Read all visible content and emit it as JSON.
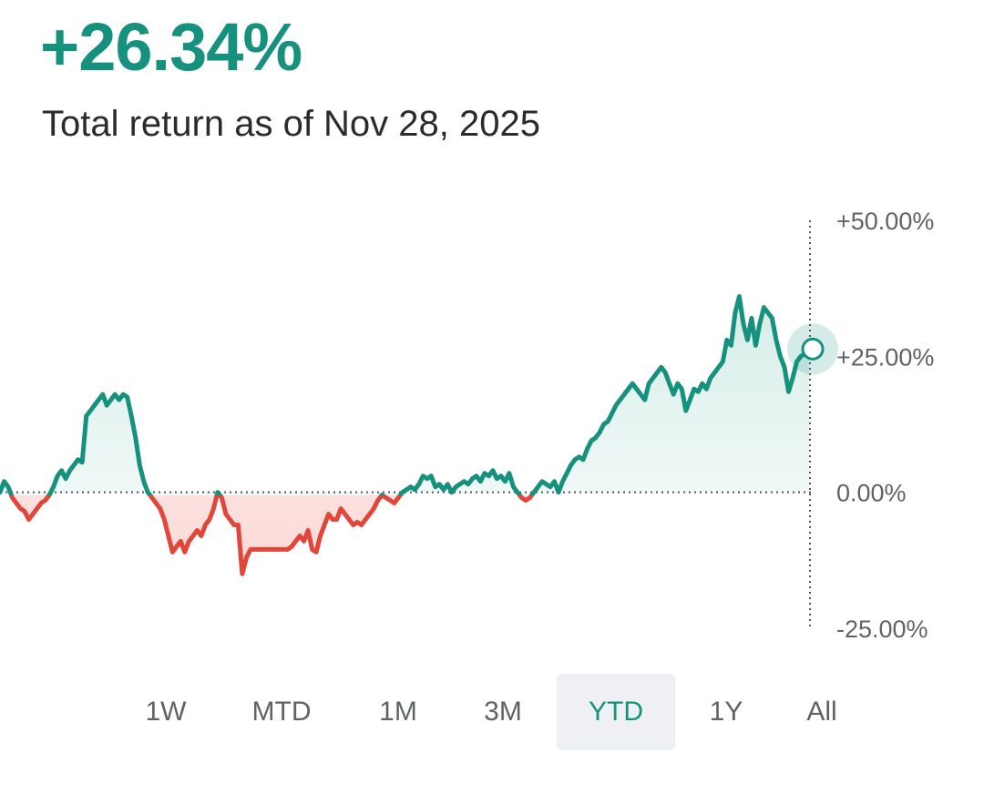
{
  "header": {
    "value": "+26.34%",
    "subtitle": "Total return as of Nov 28, 2025"
  },
  "ranges": {
    "items": [
      "1W",
      "MTD",
      "1M",
      "3M",
      "YTD",
      "1Y",
      "All"
    ],
    "selected": "YTD"
  },
  "colors": {
    "positive": "#15917d",
    "negative": "#e2463a",
    "positive_fill": "#e3f3ef",
    "negative_fill": "#fde6e4",
    "selected_bg": "#eef0f4"
  },
  "chart_data": {
    "type": "area",
    "series": [
      {
        "values": [
          0,
          2,
          1,
          -1,
          -2,
          -3,
          -3.5,
          -5,
          -4,
          -3,
          -2,
          -1.5,
          -0.5,
          1,
          3,
          4,
          2.5,
          4,
          5,
          6,
          5.5,
          14,
          15,
          16,
          17,
          18,
          16,
          17,
          18,
          17,
          18,
          17.5,
          14,
          10,
          5,
          2,
          0,
          -1,
          -2,
          -3,
          -5,
          -8,
          -11,
          -10,
          -9,
          -11,
          -9,
          -8,
          -7,
          -8,
          -6,
          -5,
          -3,
          0,
          -1,
          -4,
          -5,
          -6,
          -6,
          -15,
          -12,
          -10.5,
          -10.5,
          -10.5,
          -10.5,
          -10.5,
          -10.5,
          -10.5,
          -10.5,
          -10.5,
          -10.5,
          -10,
          -9,
          -8,
          -9,
          -7,
          -10.5,
          -11,
          -8,
          -6,
          -4,
          -5,
          -5,
          -3,
          -4,
          -5,
          -6,
          -5.5,
          -6,
          -5,
          -4,
          -3,
          -1.5,
          -0.5,
          -1,
          -1.5,
          -2,
          -1,
          0,
          0.5,
          1,
          0.5,
          1.5,
          3,
          2.5,
          3,
          1,
          1.5,
          0.5,
          1.5,
          0,
          1,
          1.5,
          2,
          1.5,
          2.5,
          3,
          2,
          3.5,
          3,
          4,
          2.5,
          3,
          2,
          3.5,
          1,
          0,
          -1,
          -1.5,
          -1,
          0,
          1,
          2,
          1.5,
          1,
          2,
          0,
          2,
          3.5,
          5,
          6,
          6.5,
          6,
          8,
          9.5,
          10,
          11,
          12.5,
          13,
          14.5,
          16,
          17,
          18,
          19,
          20,
          19,
          18,
          17,
          20,
          21,
          22,
          23,
          22,
          20,
          18,
          20,
          19,
          15,
          17,
          19,
          18.5,
          20,
          19,
          21,
          22,
          23,
          24,
          28,
          27,
          33,
          36,
          31,
          28,
          32,
          27,
          31,
          34,
          33,
          32,
          28,
          25,
          23,
          18.5,
          21,
          24,
          25,
          25.5,
          26.34
        ]
      }
    ],
    "ylim": [
      -25,
      50
    ],
    "yticks": [
      "+50.00%",
      "+25.00%",
      "0.00%",
      "-25.00%"
    ],
    "baseline": 0,
    "last_value": 26.34,
    "grid": false
  }
}
